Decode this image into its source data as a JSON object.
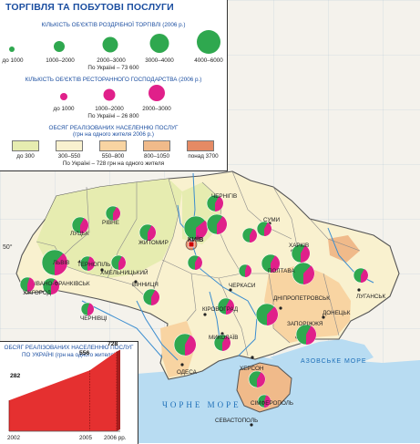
{
  "title": "ТОРГІВЛЯ ТА ПОБУТОВІ ПОСЛУГИ",
  "colors": {
    "retail": "#2fa84f",
    "restaurant": "#e0208a",
    "sea": "#b8dcf2",
    "water_label": "#1d6fb8",
    "income_1": "#e6ecb0",
    "income_2": "#f9f1cf",
    "income_3": "#f8d4a2",
    "income_4": "#f0ba8a",
    "income_5": "#e58a64",
    "chart_fill": "#e53030"
  },
  "legend": {
    "retail": {
      "heading": "КІЛЬКІСТЬ ОБ'ЄКТІВ РОЗДРІБНОЇ ТОРГІВЛІ (2006 р.)",
      "classes": [
        "до 1000",
        "1000–2000",
        "2000–3000",
        "3000–4000",
        "4000–6000"
      ],
      "total": "По Україні – 73 600"
    },
    "restaurant": {
      "heading": "КІЛЬКІСТЬ ОБ'ЄКТІВ РЕСТОРАННОГО ГОСПОДАРСТВА (2006 р.)",
      "classes": [
        "до 1000",
        "1000–2000",
        "2000–3000"
      ],
      "total": "По Україні – 26 800"
    },
    "income": {
      "heading": "ОБСЯГ РЕАЛІЗОВАНИХ НАСЕЛЕННЮ ПОСЛУГ",
      "subheading": "(грн на одного жителя 2006 р.)",
      "classes": [
        "до 300",
        "300–550",
        "550–800",
        "800–1050",
        "понад 3700"
      ],
      "total": "По Україні – 728 грн на одного жителя"
    }
  },
  "labels": {
    "cities": [
      "ЛУЦЬК",
      "РІВНЕ",
      "ЖИТОМИР",
      "ЧЕРНІГІВ",
      "СУМИ",
      "ХАРКІВ",
      "ЛЬВІВ",
      "ТЕРНОПІЛЬ",
      "ХМЕЛЬНИЦЬКИЙ",
      "ІВАНО-ФРАНКІВСЬК",
      "УЖГОРОД",
      "ЧЕРНІВЦІ",
      "ВІННИЦЯ",
      "ЧЕРКАСИ",
      "ПОЛТАВА",
      "КІРОВОГРАД",
      "ДНІПРОПЕТРОВСЬК",
      "ЗАПОРІЖЖЯ",
      "ДОНЕЦЬК",
      "ЛУГАНСЬК",
      "МИКОЛАЇВ",
      "ОДЕСА",
      "ХЕРСОН",
      "СІМФЕРОПОЛЬ",
      "СЕВАСТОПОЛЬ"
    ],
    "capital": "КИЇВ",
    "seas": [
      "АЗОВСЬКЕ МОРЕ",
      "ЧОРНЕ МОРЕ"
    ],
    "lat_50": "50°"
  },
  "chart_data": {
    "type": "area",
    "title": "ОБСЯГ РЕАЛІЗОВАНИХ НАСЕЛЕННЮ ПОСЛУГ ПО УКРАЇНІ (грн на одного жителя)",
    "x": [
      2002,
      2005,
      2006
    ],
    "values": [
      282,
      556,
      728
    ],
    "x_tick_labels": [
      "2002",
      "2005",
      "2006 рр."
    ]
  }
}
